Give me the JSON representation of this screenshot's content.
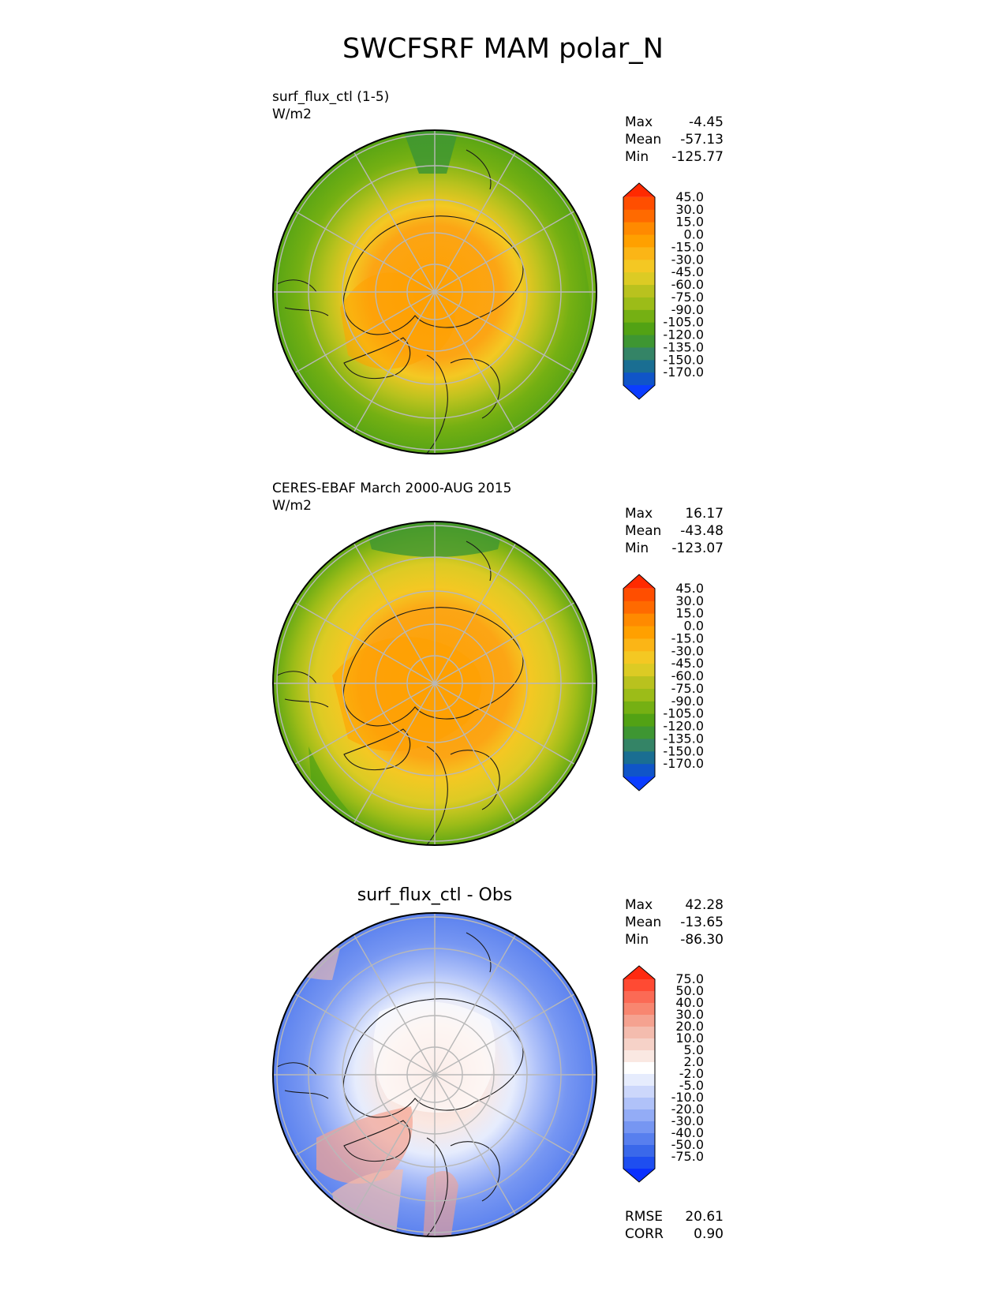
{
  "title": "SWCFSRF MAM polar_N",
  "colors": {
    "border": "#000000",
    "grid": "#b8b8b8",
    "coast": "#1a1a1a"
  },
  "panels": [
    {
      "label_line1": "surf_flux_ctl (1-5)",
      "label_line2": "W/m2",
      "stats": {
        "max_label": "Max",
        "max": "-4.45",
        "mean_label": "Mean",
        "mean": "-57.13",
        "min_label": "Min",
        "min": "-125.77"
      },
      "colorbar": {
        "ticks": [
          "45.0",
          "30.0",
          "15.0",
          "0.0",
          "-15.0",
          "-30.0",
          "-45.0",
          "-60.0",
          "-75.0",
          "-90.0",
          "-105.0",
          "-120.0",
          "-135.0",
          "-150.0",
          "-170.0"
        ],
        "colors": [
          "#ff2a00",
          "#ff4e00",
          "#ff6a00",
          "#ff8a00",
          "#ffa000",
          "#fbb516",
          "#f4c823",
          "#dccb24",
          "#b9c21e",
          "#9cbc18",
          "#75b013",
          "#52a214",
          "#3e9632",
          "#348466",
          "#1a6e92",
          "#1055c8",
          "#0b3dff"
        ]
      }
    },
    {
      "label_line1": "CERES-EBAF March 2000-AUG 2015",
      "label_line2": "W/m2",
      "stats": {
        "max_label": "Max",
        "max": "16.17",
        "mean_label": "Mean",
        "mean": "-43.48",
        "min_label": "Min",
        "min": "-123.07"
      },
      "colorbar": {
        "ticks": [
          "45.0",
          "30.0",
          "15.0",
          "0.0",
          "-15.0",
          "-30.0",
          "-45.0",
          "-60.0",
          "-75.0",
          "-90.0",
          "-105.0",
          "-120.0",
          "-135.0",
          "-150.0",
          "-170.0"
        ],
        "colors": [
          "#ff2a00",
          "#ff4e00",
          "#ff6a00",
          "#ff8a00",
          "#ffa000",
          "#fbb516",
          "#f4c823",
          "#dccb24",
          "#b9c21e",
          "#9cbc18",
          "#75b013",
          "#52a214",
          "#3e9632",
          "#348466",
          "#1a6e92",
          "#1055c8",
          "#0b3dff"
        ]
      }
    },
    {
      "title": "surf_flux_ctl - Obs",
      "stats": {
        "max_label": "Max",
        "max": "42.28",
        "mean_label": "Mean",
        "mean": "-13.65",
        "min_label": "Min",
        "min": "-86.30"
      },
      "colorbar": {
        "ticks": [
          "75.0",
          "50.0",
          "40.0",
          "30.0",
          "20.0",
          "10.0",
          "5.0",
          "2.0",
          "-2.0",
          "-5.0",
          "-10.0",
          "-20.0",
          "-30.0",
          "-40.0",
          "-50.0",
          "-75.0"
        ],
        "colors": [
          "#ff2a10",
          "#ff4a33",
          "#fb6a55",
          "#f88670",
          "#f5a290",
          "#f4bcae",
          "#f6d2c8",
          "#fae8e2",
          "#ffffff",
          "#e6ecfd",
          "#ccd7fb",
          "#b0c2f9",
          "#93acf6",
          "#7696f2",
          "#587fee",
          "#3a68ea",
          "#1e4ef0",
          "#0a30ff"
        ]
      },
      "rmse_label": "RMSE",
      "rmse": "20.61",
      "corr_label": "CORR",
      "corr": "0.90"
    }
  ]
}
